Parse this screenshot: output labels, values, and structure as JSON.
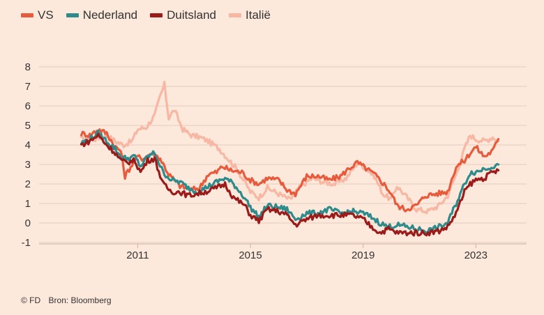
{
  "chart_data": {
    "type": "line",
    "title": "",
    "xlabel": "",
    "ylabel": "",
    "xlim": [
      2007.5,
      2024.8
    ],
    "ylim": [
      -1,
      8
    ],
    "yticks": [
      -1,
      0,
      1,
      2,
      3,
      4,
      5,
      6,
      7,
      8
    ],
    "xticks": [
      2011,
      2015,
      2019,
      2023
    ],
    "grid": "horizontal",
    "legend_position": "top-left",
    "series": [
      {
        "name": "Italië",
        "color": "#f7b7a3",
        "x": [
          2009.0,
          2009.5,
          2009.9,
          2010.2,
          2010.5,
          2010.8,
          2011.0,
          2011.3,
          2011.6,
          2011.8,
          2011.95,
          2012.1,
          2012.3,
          2012.6,
          2012.9,
          2013.2,
          2013.5,
          2013.9,
          2014.2,
          2014.5,
          2014.8,
          2015.0,
          2015.3,
          2015.6,
          2016.0,
          2016.4,
          2016.8,
          2017.2,
          2017.6,
          2018.0,
          2018.4,
          2018.8,
          2019.1,
          2019.4,
          2019.7,
          2020.0,
          2020.2,
          2020.5,
          2020.9,
          2021.3,
          2021.7,
          2022.0,
          2022.3,
          2022.6,
          2022.8,
          2023.0,
          2023.3,
          2023.6,
          2023.8
        ],
        "values": [
          4.3,
          4.3,
          4.5,
          4.2,
          4.0,
          4.2,
          4.8,
          4.9,
          5.5,
          6.5,
          7.1,
          5.4,
          5.8,
          4.8,
          4.5,
          4.4,
          4.2,
          3.8,
          3.3,
          2.8,
          2.1,
          1.6,
          1.3,
          1.8,
          1.5,
          1.2,
          1.9,
          2.3,
          2.1,
          2.0,
          2.3,
          3.1,
          2.8,
          2.4,
          1.5,
          1.2,
          1.9,
          1.4,
          0.7,
          0.6,
          0.9,
          1.4,
          2.5,
          3.8,
          4.5,
          4.3,
          4.2,
          4.4,
          4.2
        ]
      },
      {
        "name": "VS",
        "color": "#e85a3c",
        "x": [
          2009.0,
          2009.3,
          2009.6,
          2009.9,
          2010.2,
          2010.4,
          2010.55,
          2010.8,
          2011.0,
          2011.2,
          2011.5,
          2011.8,
          2012.1,
          2012.5,
          2012.9,
          2013.2,
          2013.5,
          2013.8,
          2014.0,
          2014.3,
          2014.7,
          2015.0,
          2015.3,
          2015.6,
          2016.0,
          2016.3,
          2016.6,
          2017.0,
          2017.4,
          2017.8,
          2018.2,
          2018.5,
          2018.8,
          2019.0,
          2019.4,
          2019.8,
          2020.0,
          2020.2,
          2020.5,
          2020.9,
          2021.2,
          2021.6,
          2022.0,
          2022.3,
          2022.6,
          2022.8,
          2023.0,
          2023.3,
          2023.6,
          2023.8
        ],
        "values": [
          4.6,
          4.5,
          4.8,
          4.6,
          3.9,
          3.7,
          2.4,
          3.0,
          3.4,
          3.3,
          3.6,
          3.3,
          2.5,
          1.9,
          1.7,
          1.8,
          2.5,
          2.6,
          2.9,
          2.7,
          2.6,
          2.2,
          2.0,
          2.3,
          2.2,
          1.7,
          1.5,
          2.4,
          2.4,
          2.2,
          2.4,
          2.8,
          3.1,
          2.9,
          2.5,
          1.9,
          1.5,
          0.9,
          0.7,
          0.9,
          1.4,
          1.5,
          1.6,
          2.9,
          3.2,
          3.6,
          3.9,
          3.4,
          3.7,
          4.3
        ]
      },
      {
        "name": "Nederland",
        "color": "#2e8b8b",
        "x": [
          2009.0,
          2009.3,
          2009.6,
          2009.9,
          2010.2,
          2010.4,
          2010.6,
          2010.9,
          2011.1,
          2011.35,
          2011.6,
          2011.9,
          2012.2,
          2012.5,
          2012.8,
          2013.1,
          2013.4,
          2013.8,
          2014.1,
          2014.4,
          2014.8,
          2015.0,
          2015.3,
          2015.6,
          2016.0,
          2016.3,
          2016.6,
          2017.0,
          2017.4,
          2017.8,
          2018.2,
          2018.6,
          2019.0,
          2019.3,
          2019.6,
          2019.9,
          2020.2,
          2020.6,
          2020.9,
          2021.3,
          2021.7,
          2022.0,
          2022.3,
          2022.6,
          2022.8,
          2023.0,
          2023.3,
          2023.6,
          2023.8
        ],
        "values": [
          4.1,
          4.3,
          4.6,
          4.2,
          3.8,
          3.4,
          3.3,
          3.4,
          2.9,
          3.4,
          3.6,
          2.6,
          2.2,
          2.1,
          1.8,
          1.6,
          1.8,
          2.1,
          2.3,
          2.0,
          1.3,
          0.8,
          0.3,
          0.9,
          0.8,
          0.7,
          0.2,
          0.5,
          0.5,
          0.7,
          0.5,
          0.6,
          0.5,
          0.3,
          0.0,
          -0.2,
          -0.1,
          -0.2,
          -0.3,
          -0.4,
          -0.2,
          0.0,
          1.0,
          2.0,
          2.6,
          2.6,
          2.8,
          2.9,
          3.0
        ]
      },
      {
        "name": "Duitsland",
        "color": "#9b1b1b",
        "x": [
          2009.0,
          2009.3,
          2009.6,
          2009.9,
          2010.2,
          2010.4,
          2010.6,
          2010.9,
          2011.1,
          2011.35,
          2011.6,
          2011.9,
          2012.2,
          2012.5,
          2012.8,
          2013.1,
          2013.4,
          2013.8,
          2014.1,
          2014.4,
          2014.8,
          2015.0,
          2015.3,
          2015.6,
          2016.0,
          2016.3,
          2016.6,
          2017.0,
          2017.4,
          2017.8,
          2018.2,
          2018.6,
          2019.0,
          2019.3,
          2019.6,
          2019.9,
          2020.2,
          2020.6,
          2020.9,
          2021.3,
          2021.7,
          2022.0,
          2022.3,
          2022.6,
          2022.8,
          2023.0,
          2023.3,
          2023.6,
          2023.8
        ],
        "values": [
          4.0,
          4.2,
          4.5,
          4.0,
          3.6,
          3.2,
          3.1,
          3.2,
          2.6,
          3.2,
          3.3,
          2.0,
          1.6,
          1.6,
          1.4,
          1.5,
          1.6,
          1.8,
          2.0,
          1.3,
          0.9,
          0.4,
          0.1,
          0.7,
          0.6,
          0.4,
          -0.1,
          0.2,
          0.4,
          0.4,
          0.4,
          0.4,
          0.2,
          -0.2,
          -0.5,
          -0.3,
          -0.5,
          -0.5,
          -0.5,
          -0.5,
          -0.4,
          -0.2,
          0.5,
          1.6,
          2.0,
          2.2,
          2.3,
          2.6,
          2.7
        ]
      }
    ]
  },
  "legend": [
    {
      "label": "VS",
      "color": "#e85a3c"
    },
    {
      "label": "Nederland",
      "color": "#2e8b8b"
    },
    {
      "label": "Duitsland",
      "color": "#9b1b1b"
    },
    {
      "label": "Italië",
      "color": "#f7b7a3"
    }
  ],
  "footer": {
    "copyright": "© FD",
    "source": "Bron: Bloomberg"
  }
}
